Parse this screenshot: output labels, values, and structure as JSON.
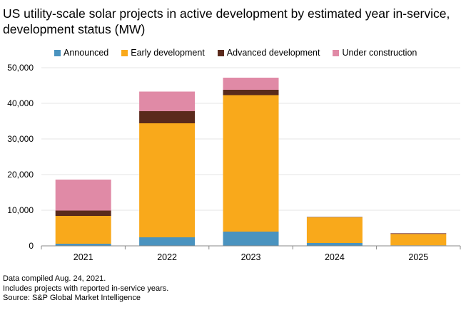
{
  "chart_data": {
    "type": "bar",
    "stacked": true,
    "title": "US utility-scale solar projects in active development by estimated year in-service, development status (MW)",
    "categories": [
      "2021",
      "2022",
      "2023",
      "2024",
      "2025"
    ],
    "series": [
      {
        "name": "Announced",
        "color": "#4A93BF",
        "values": [
          600,
          2400,
          4000,
          800,
          150
        ]
      },
      {
        "name": "Early development",
        "color": "#F9A91B",
        "values": [
          7800,
          32000,
          38300,
          7200,
          3200
        ]
      },
      {
        "name": "Advanced development",
        "color": "#5A2A1C",
        "values": [
          1500,
          3400,
          1500,
          100,
          150
        ]
      },
      {
        "name": "Under construction",
        "color": "#E08AA6",
        "values": [
          8700,
          5500,
          3400,
          0,
          50
        ]
      }
    ],
    "ylim": [
      0,
      50000
    ],
    "yticks": [
      0,
      10000,
      20000,
      30000,
      40000,
      50000
    ],
    "ytick_labels": [
      "0",
      "10,000",
      "20,000",
      "30,000",
      "40,000",
      "50,000"
    ],
    "grid": true,
    "legend_position": "top"
  },
  "notes": [
    "Data compiled Aug. 24, 2021.",
    "Includes projects with reported in-service years.",
    "Source: S&P Global Market Intelligence"
  ]
}
